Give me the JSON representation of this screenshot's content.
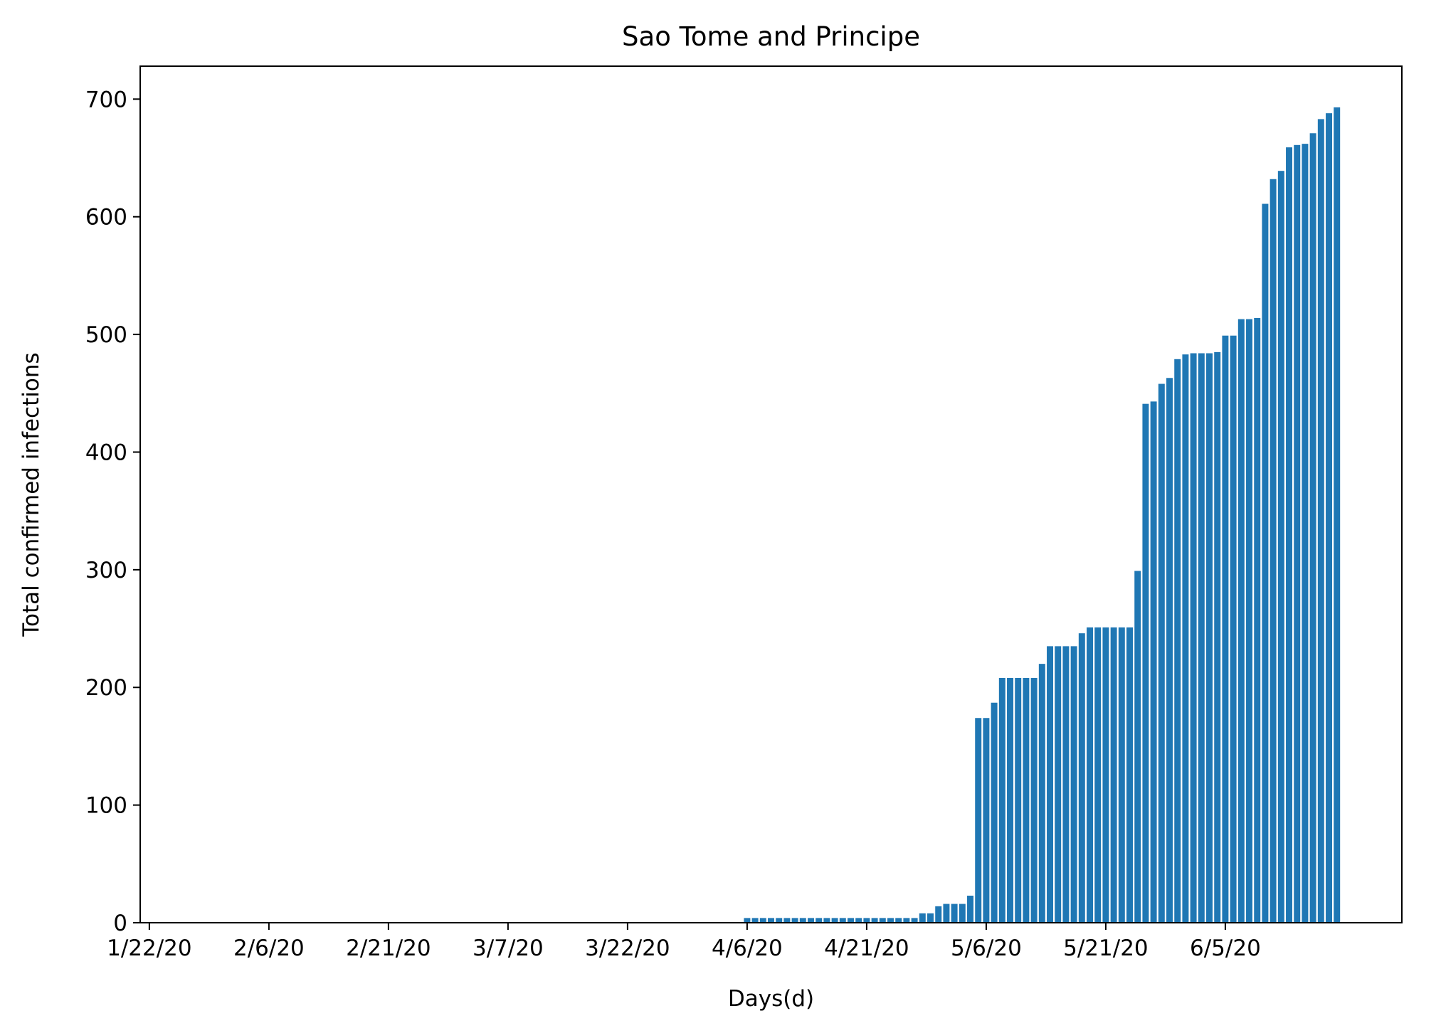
{
  "chart_data": {
    "type": "bar",
    "title": "Sao Tome and Principe",
    "xlabel": "Days(d)",
    "ylabel": "Total confirmed infections",
    "ylim": [
      0,
      728
    ],
    "x_start_date": "1/22/20",
    "x_tick_labels": [
      "1/22/20",
      "2/6/20",
      "2/21/20",
      "3/7/20",
      "3/22/20",
      "4/6/20",
      "4/21/20",
      "5/6/20",
      "5/21/20",
      "6/5/20"
    ],
    "y_ticks": [
      0,
      100,
      200,
      300,
      400,
      500,
      600,
      700
    ],
    "grid": false,
    "legend": false,
    "bar_color": "#1f77b4",
    "values": [
      0,
      0,
      0,
      0,
      0,
      0,
      0,
      0,
      0,
      0,
      0,
      0,
      0,
      0,
      0,
      0,
      0,
      0,
      0,
      0,
      0,
      0,
      0,
      0,
      0,
      0,
      0,
      0,
      0,
      0,
      0,
      0,
      0,
      0,
      0,
      0,
      0,
      0,
      0,
      0,
      0,
      0,
      0,
      0,
      0,
      0,
      0,
      0,
      0,
      0,
      0,
      0,
      0,
      0,
      0,
      0,
      0,
      0,
      0,
      0,
      0,
      0,
      0,
      0,
      0,
      0,
      0,
      0,
      0,
      0,
      0,
      0,
      0,
      0,
      0,
      4,
      4,
      4,
      4,
      4,
      4,
      4,
      4,
      4,
      4,
      4,
      4,
      4,
      4,
      4,
      4,
      4,
      4,
      4,
      4,
      4,
      4,
      8,
      8,
      14,
      16,
      16,
      16,
      23,
      174,
      174,
      187,
      208,
      208,
      208,
      208,
      208,
      220,
      235,
      235,
      235,
      235,
      246,
      251,
      251,
      251,
      251,
      251,
      251,
      299,
      441,
      443,
      458,
      463,
      479,
      483,
      484,
      484,
      484,
      485,
      499,
      499,
      513,
      513,
      514,
      611,
      632,
      639,
      659,
      661,
      662,
      671,
      683,
      688,
      693
    ]
  }
}
